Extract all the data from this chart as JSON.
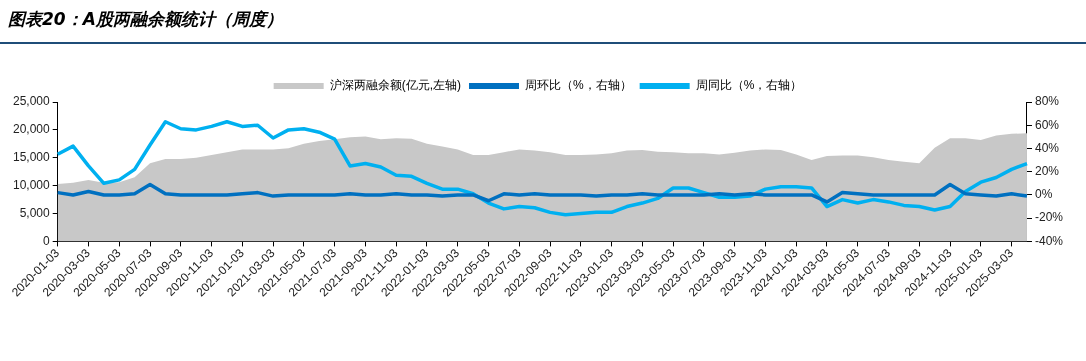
{
  "chart_data": {
    "type": "line",
    "title": "图表20：A股两融余额统计（周度）",
    "categories": [
      "2020-01-03",
      null,
      "2020-03-03",
      null,
      "2020-05-03",
      null,
      "2020-07-03",
      null,
      "2020-09-03",
      null,
      "2020-11-03",
      null,
      "2021-01-03",
      null,
      "2021-03-03",
      null,
      "2021-05-03",
      null,
      "2021-07-03",
      null,
      "2021-09-03",
      null,
      "2021-11-03",
      null,
      "2022-01-03",
      null,
      "2022-03-03",
      null,
      "2022-05-03",
      null,
      "2022-07-03",
      null,
      "2022-09-03",
      null,
      "2022-11-03",
      null,
      "2023-01-03",
      null,
      "2023-03-03",
      null,
      "2023-05-03",
      null,
      "2023-07-03",
      null,
      "2023-09-03",
      null,
      "2023-11-03",
      null,
      "2024-01-03",
      null,
      "2024-03-03",
      null,
      "2024-05-03",
      null,
      "2024-07-03",
      null,
      "2024-09-03",
      null,
      "2024-11-03",
      null,
      "2025-01-03",
      null,
      "2025-03-03",
      null
    ],
    "series": [
      {
        "name": "沪深两融余额(亿元,左轴)",
        "type": "area",
        "color": "#c8c8c8",
        "values": [
          10300,
          10500,
          11000,
          10500,
          10600,
          11500,
          14000,
          14800,
          14800,
          15000,
          15500,
          16000,
          16500,
          16500,
          16500,
          16700,
          17500,
          18000,
          18300,
          18700,
          18800,
          18300,
          18500,
          18400,
          17500,
          17000,
          16500,
          15500,
          15500,
          16000,
          16500,
          16300,
          16000,
          15500,
          15500,
          15600,
          15800,
          16300,
          16400,
          16100,
          16000,
          15800,
          15800,
          15600,
          15900,
          16300,
          16500,
          16400,
          15600,
          14600,
          15300,
          15400,
          15400,
          15100,
          14600,
          14300,
          14000,
          16800,
          18500,
          18500,
          18200,
          19000,
          19300,
          19400
        ]
      },
      {
        "name": "周环比（%，右轴）",
        "type": "line",
        "axis": "y2",
        "color": "#0070c0",
        "values": [
          2,
          0,
          3,
          0,
          0,
          1,
          9,
          1,
          0,
          0,
          0,
          0,
          1,
          2,
          -1,
          0,
          0,
          0,
          0,
          1,
          0,
          0,
          1,
          0,
          0,
          -1,
          0,
          0,
          -5,
          1,
          0,
          1,
          0,
          0,
          0,
          -1,
          0,
          0,
          1,
          0,
          0,
          0,
          0,
          1,
          0,
          1,
          0,
          0,
          0,
          0,
          -6,
          2,
          1,
          0,
          0,
          0,
          0,
          0,
          9,
          1,
          0,
          -1,
          1,
          -1
        ]
      },
      {
        "name": "周同比（%，右轴）",
        "type": "line",
        "axis": "y2",
        "color": "#00b0f0",
        "values": [
          35,
          42,
          25,
          10,
          13,
          22,
          43,
          63,
          57,
          56,
          59,
          63,
          59,
          60,
          49,
          56,
          57,
          54,
          48,
          25,
          27,
          24,
          17,
          16,
          10,
          5,
          5,
          1,
          -7,
          -12,
          -10,
          -11,
          -15,
          -17,
          -16,
          -15,
          -15,
          -10,
          -7,
          -3,
          6,
          6,
          2,
          -2,
          -2,
          -1,
          5,
          7,
          7,
          6,
          -10,
          -4,
          -7,
          -4,
          -6,
          -9,
          -10,
          -13,
          -10,
          3,
          11,
          15,
          22,
          27
        ]
      }
    ],
    "ylim": [
      0,
      25000
    ],
    "yticks": [
      0,
      {
        "value": 5000,
        "label": "5,000"
      },
      {
        "value": 10000,
        "label": "10,000"
      },
      {
        "value": 15000,
        "label": "15,000"
      },
      {
        "value": 20000,
        "label": "20,000"
      },
      {
        "value": 25000,
        "label": "25,000"
      }
    ],
    "y2lim": [
      -40,
      80
    ],
    "y2ticks": [
      {
        "value": -40,
        "label": "-40%"
      },
      {
        "value": -20,
        "label": "-20%"
      },
      {
        "value": 0,
        "label": "0%"
      },
      {
        "value": 20,
        "label": "20%"
      },
      {
        "value": 40,
        "label": "40%"
      },
      {
        "value": 60,
        "label": "60%"
      },
      {
        "value": 80,
        "label": "80%"
      }
    ],
    "legend": "top",
    "grid": false,
    "marker": "none"
  }
}
